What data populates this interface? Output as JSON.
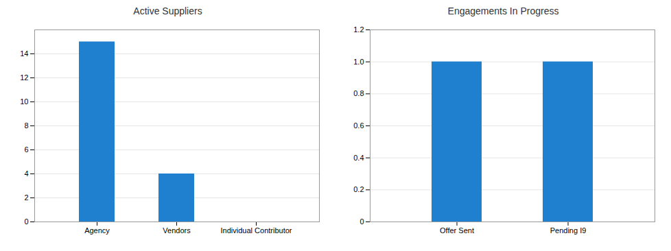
{
  "chart_data": [
    {
      "type": "bar",
      "title": "Active Suppliers",
      "categories": [
        "Agency",
        "Vendors",
        "Individual Contributor"
      ],
      "values": [
        15,
        4,
        0
      ],
      "color": "#2080d0",
      "ylim": [
        0,
        16
      ],
      "yticks": [
        0,
        2,
        4,
        6,
        8,
        10,
        12,
        14
      ],
      "grid": true
    },
    {
      "type": "bar",
      "title": "Engagements In Progress",
      "categories": [
        "Offer Sent",
        "Pending I9"
      ],
      "values": [
        1,
        1
      ],
      "color": "#2080d0",
      "ylim": [
        0,
        1.2
      ],
      "yticks": [
        0,
        0.2,
        0.4,
        0.6,
        0.8,
        {
          "value": 1,
          "label": "1.0"
        },
        1.2
      ],
      "grid": true
    }
  ]
}
